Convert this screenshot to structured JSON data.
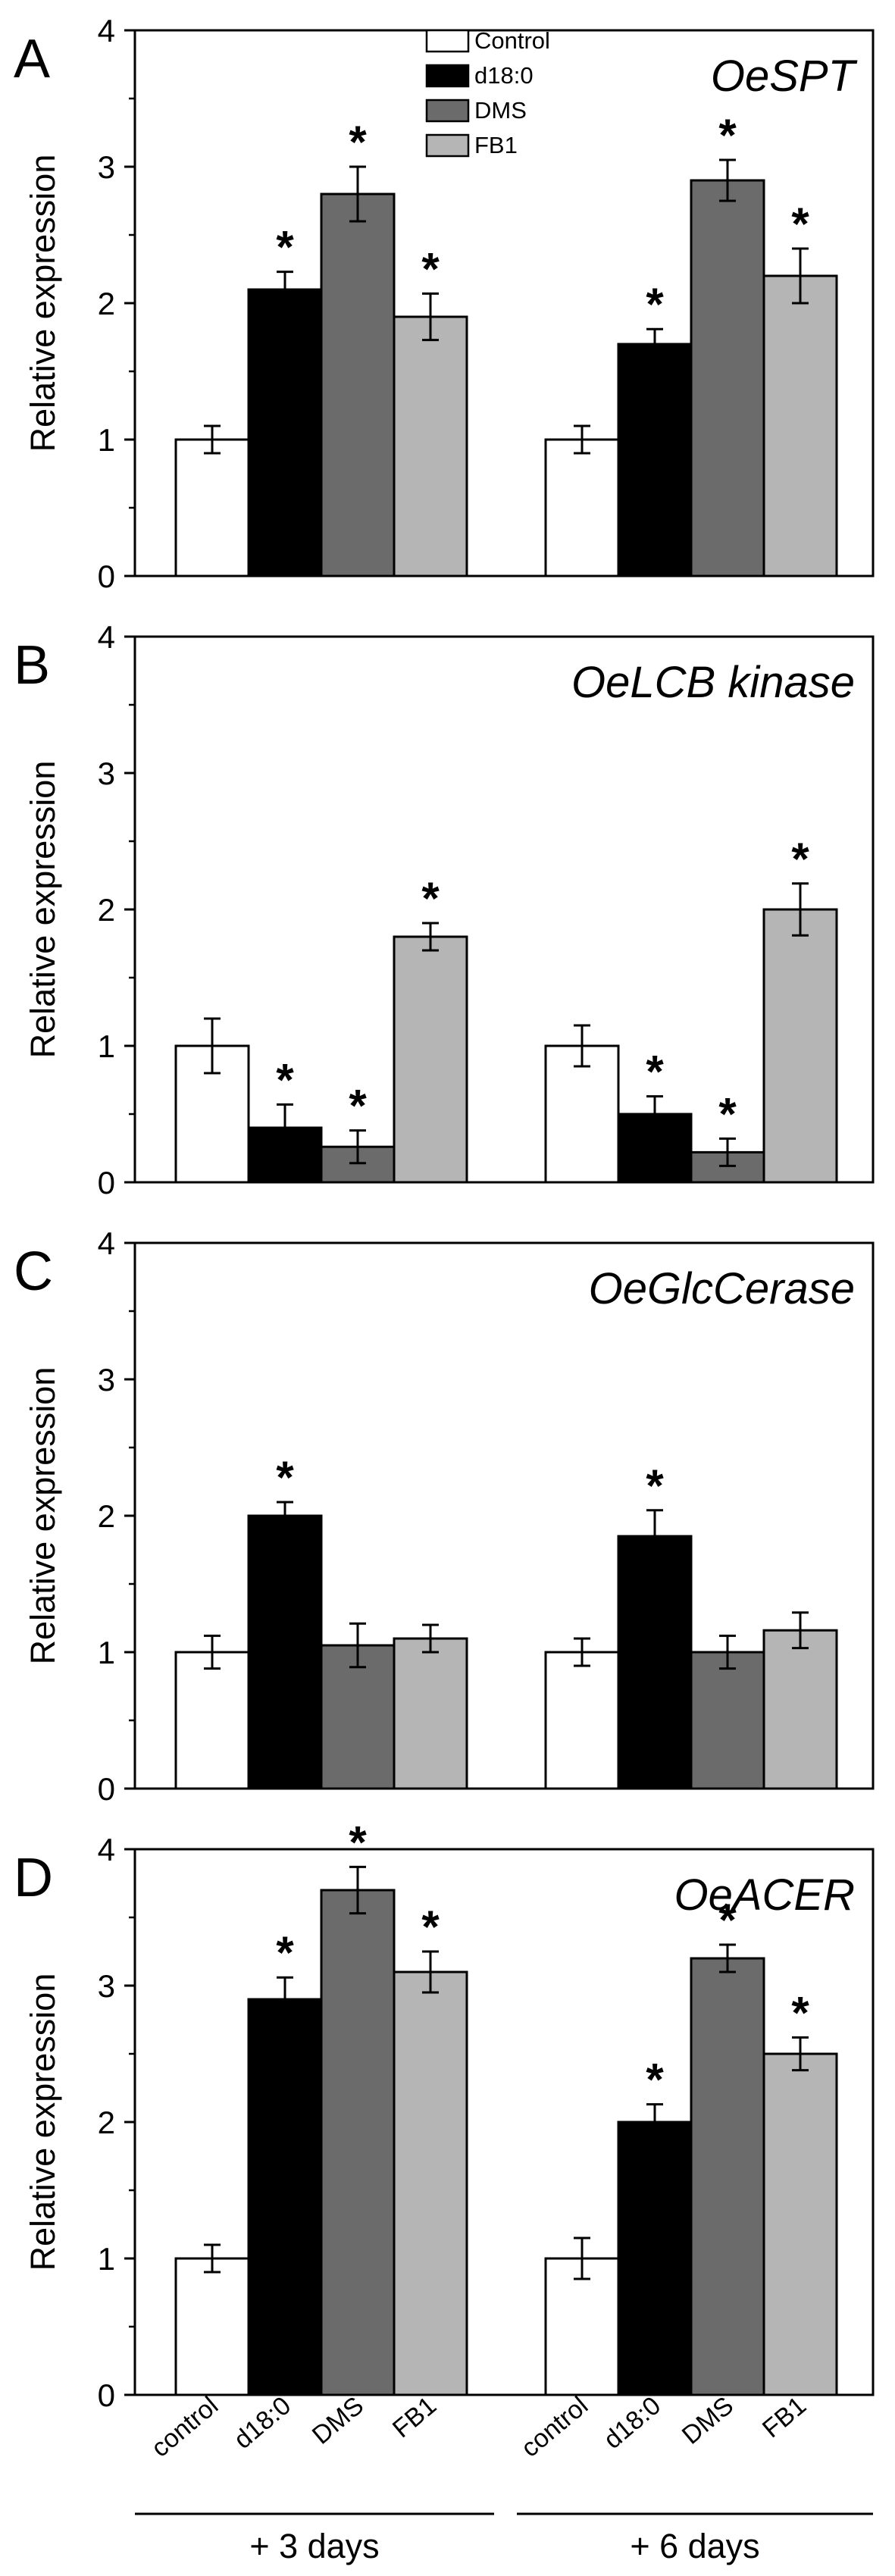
{
  "figure": {
    "ylabel": "Relative expression",
    "group_labels": [
      "+ 3 days",
      "+ 6 days"
    ],
    "legend": [
      "Control",
      "d18:0",
      "DMS",
      "FB1"
    ],
    "bar_colors": [
      "#ffffff",
      "#000000",
      "#6b6b6b",
      "#b5b5b5"
    ]
  },
  "chart_data": [
    {
      "type": "bar",
      "panel_letter": "A",
      "title": "OeSPT",
      "ylabel": "Relative expression",
      "ylim": [
        0,
        4
      ],
      "yticks": [
        "0",
        "1",
        "2",
        "3",
        "4"
      ],
      "groups": [
        "+ 3 days",
        "+ 6 days"
      ],
      "legend_position": "top-center",
      "series": [
        {
          "name": "Control",
          "values": [
            1.0,
            1.0
          ],
          "errors": [
            0.1,
            0.1
          ],
          "significant": [
            false,
            false
          ]
        },
        {
          "name": "d18:0",
          "values": [
            2.1,
            1.7
          ],
          "errors": [
            0.13,
            0.11
          ],
          "significant": [
            true,
            true
          ]
        },
        {
          "name": "DMS",
          "values": [
            2.8,
            2.9
          ],
          "errors": [
            0.2,
            0.15
          ],
          "significant": [
            true,
            true
          ]
        },
        {
          "name": "FB1",
          "values": [
            1.9,
            2.2
          ],
          "errors": [
            0.17,
            0.2
          ],
          "significant": [
            true,
            true
          ]
        }
      ]
    },
    {
      "type": "bar",
      "panel_letter": "B",
      "title": "OeLCB kinase",
      "ylabel": "Relative expression",
      "ylim": [
        0,
        4
      ],
      "yticks": [
        "0",
        "1",
        "2",
        "3",
        "4"
      ],
      "groups": [
        "+ 3 days",
        "+ 6 days"
      ],
      "series": [
        {
          "name": "Control",
          "values": [
            1.0,
            1.0
          ],
          "errors": [
            0.2,
            0.15
          ],
          "significant": [
            false,
            false
          ]
        },
        {
          "name": "d18:0",
          "values": [
            0.4,
            0.5
          ],
          "errors": [
            0.17,
            0.13
          ],
          "significant": [
            true,
            true
          ]
        },
        {
          "name": "DMS",
          "values": [
            0.26,
            0.22
          ],
          "errors": [
            0.12,
            0.1
          ],
          "significant": [
            true,
            true
          ]
        },
        {
          "name": "FB1",
          "values": [
            1.8,
            2.0
          ],
          "errors": [
            0.1,
            0.19
          ],
          "significant": [
            true,
            true
          ]
        }
      ]
    },
    {
      "type": "bar",
      "panel_letter": "C",
      "title": "OeGlcCerase",
      "ylabel": "Relative expression",
      "ylim": [
        0,
        4
      ],
      "yticks": [
        "0",
        "1",
        "2",
        "3",
        "4"
      ],
      "groups": [
        "+ 3 days",
        "+ 6 days"
      ],
      "series": [
        {
          "name": "Control",
          "values": [
            1.0,
            1.0
          ],
          "errors": [
            0.12,
            0.1
          ],
          "significant": [
            false,
            false
          ]
        },
        {
          "name": "d18:0",
          "values": [
            2.0,
            1.85
          ],
          "errors": [
            0.1,
            0.19
          ],
          "significant": [
            true,
            true
          ]
        },
        {
          "name": "DMS",
          "values": [
            1.05,
            1.0
          ],
          "errors": [
            0.16,
            0.12
          ],
          "significant": [
            false,
            false
          ]
        },
        {
          "name": "FB1",
          "values": [
            1.1,
            1.16
          ],
          "errors": [
            0.1,
            0.13
          ],
          "significant": [
            false,
            false
          ]
        }
      ]
    },
    {
      "type": "bar",
      "panel_letter": "D",
      "title": "OeACER",
      "ylabel": "Relative expression",
      "ylim": [
        0,
        4
      ],
      "yticks": [
        "0",
        "1",
        "2",
        "3",
        "4"
      ],
      "groups": [
        "+ 3 days",
        "+ 6 days"
      ],
      "xticklabels": [
        "control",
        "d18:0",
        "DMS",
        "FB1"
      ],
      "series": [
        {
          "name": "control",
          "values": [
            1.0,
            1.0
          ],
          "errors": [
            0.1,
            0.15
          ],
          "significant": [
            false,
            false
          ]
        },
        {
          "name": "d18:0",
          "values": [
            2.9,
            2.0
          ],
          "errors": [
            0.16,
            0.13
          ],
          "significant": [
            true,
            true
          ]
        },
        {
          "name": "DMS",
          "values": [
            3.7,
            3.2
          ],
          "errors": [
            0.17,
            0.1
          ],
          "significant": [
            true,
            true
          ]
        },
        {
          "name": "FB1",
          "values": [
            3.1,
            2.5
          ],
          "errors": [
            0.15,
            0.12
          ],
          "significant": [
            true,
            true
          ]
        }
      ]
    }
  ]
}
